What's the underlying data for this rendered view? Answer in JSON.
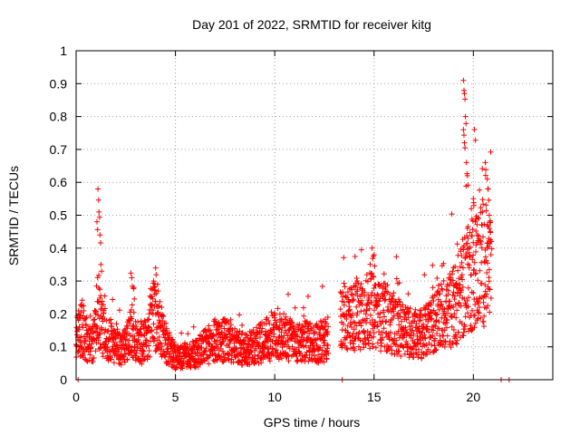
{
  "chart_data": {
    "type": "scatter",
    "title": "Day 201 of 2022, SRMTID for receiver kitg",
    "xlabel": "GPS time / hours",
    "ylabel": "SRMTID / TECUs",
    "xlim": [
      0,
      24
    ],
    "ylim": [
      0,
      1
    ],
    "xticks": [
      0,
      5,
      10,
      15,
      20
    ],
    "yticks": [
      0,
      0.1,
      0.2,
      0.3,
      0.4,
      0.5,
      0.6,
      0.7,
      0.8,
      0.9,
      1
    ],
    "xtick_labels": [
      "0",
      "5",
      "10",
      "15",
      "20"
    ],
    "ytick_labels": [
      "0",
      "0.1",
      "0.2",
      "0.3",
      "0.4",
      "0.5",
      "0.6",
      "0.7",
      "0.8",
      "0.9",
      "1"
    ],
    "grid": true,
    "marker": "+",
    "color": "#ff0000",
    "series": [
      {
        "name": "SRMTID",
        "profile": [
          [
            0.0,
            0.14
          ],
          [
            0.3,
            0.16
          ],
          [
            0.6,
            0.11
          ],
          [
            0.9,
            0.12
          ],
          [
            1.1,
            0.22
          ],
          [
            1.3,
            0.16
          ],
          [
            1.6,
            0.13
          ],
          [
            2.0,
            0.1
          ],
          [
            2.5,
            0.1
          ],
          [
            2.8,
            0.15
          ],
          [
            3.2,
            0.1
          ],
          [
            3.6,
            0.12
          ],
          [
            3.9,
            0.2
          ],
          [
            4.2,
            0.16
          ],
          [
            4.6,
            0.1
          ],
          [
            5.0,
            0.07
          ],
          [
            5.5,
            0.07
          ],
          [
            6.0,
            0.08
          ],
          [
            6.5,
            0.1
          ],
          [
            7.0,
            0.12
          ],
          [
            7.5,
            0.12
          ],
          [
            8.0,
            0.1
          ],
          [
            8.5,
            0.09
          ],
          [
            9.0,
            0.1
          ],
          [
            9.5,
            0.12
          ],
          [
            10.0,
            0.13
          ],
          [
            10.5,
            0.13
          ],
          [
            11.0,
            0.11
          ],
          [
            11.5,
            0.12
          ],
          [
            12.0,
            0.11
          ],
          [
            12.6,
            0.12
          ],
          [
            13.4,
            0.19
          ],
          [
            14.0,
            0.19
          ],
          [
            14.5,
            0.21
          ],
          [
            15.0,
            0.21
          ],
          [
            15.5,
            0.18
          ],
          [
            16.0,
            0.17
          ],
          [
            16.5,
            0.15
          ],
          [
            17.0,
            0.14
          ],
          [
            17.5,
            0.14
          ],
          [
            18.0,
            0.17
          ],
          [
            18.5,
            0.2
          ],
          [
            19.0,
            0.22
          ],
          [
            19.5,
            0.28
          ],
          [
            20.0,
            0.33
          ],
          [
            20.5,
            0.36
          ],
          [
            20.9,
            0.32
          ]
        ],
        "spikes": [
          [
            1.05,
            0.48
          ],
          [
            1.1,
            0.58
          ],
          [
            1.15,
            0.51
          ],
          [
            1.2,
            0.44
          ],
          [
            1.25,
            0.35
          ],
          [
            2.8,
            0.31
          ],
          [
            2.9,
            0.28
          ],
          [
            3.9,
            0.3
          ],
          [
            4.0,
            0.34
          ],
          [
            4.1,
            0.29
          ],
          [
            14.9,
            0.4
          ],
          [
            15.0,
            0.38
          ],
          [
            19.5,
            0.91
          ],
          [
            19.55,
            0.87
          ],
          [
            19.6,
            0.8
          ],
          [
            19.5,
            0.76
          ],
          [
            19.55,
            0.72
          ],
          [
            19.65,
            0.66
          ],
          [
            19.7,
            0.62
          ],
          [
            19.9,
            0.52
          ],
          [
            20.0,
            0.55
          ],
          [
            20.1,
            0.48
          ],
          [
            20.2,
            0.44
          ],
          [
            20.6,
            0.66
          ],
          [
            20.7,
            0.61
          ],
          [
            20.75,
            0.58
          ],
          [
            20.8,
            0.5
          ],
          [
            20.85,
            0.45
          ],
          [
            19.7,
            0.46
          ],
          [
            20.9,
            0.42
          ]
        ],
        "zeros": [
          0.1,
          13.4,
          21.4,
          21.8
        ],
        "gaps": [
          [
            12.7,
            13.3
          ],
          [
            21.0,
            24.0
          ]
        ]
      }
    ]
  }
}
